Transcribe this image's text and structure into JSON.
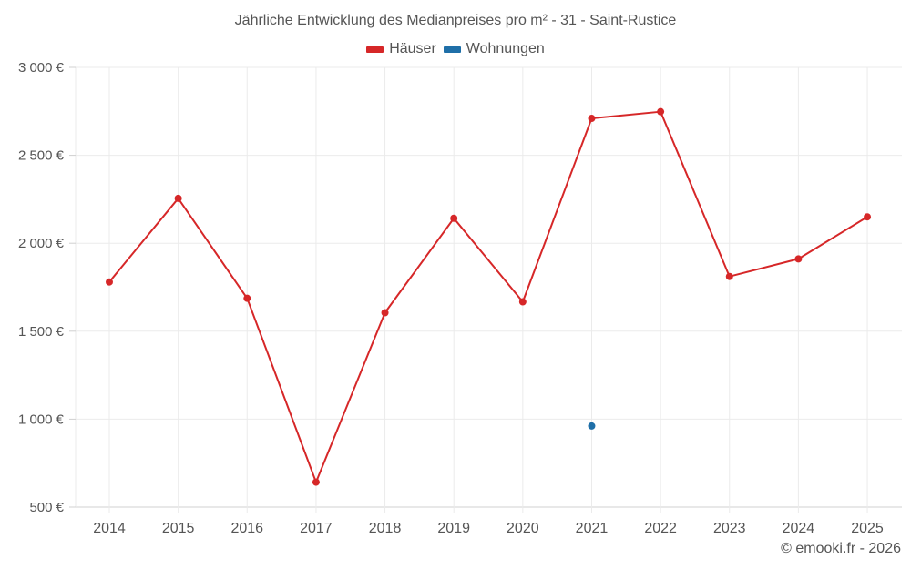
{
  "chart": {
    "title": "Jährliche Entwicklung des Medianpreises pro m² - 31 - Saint-Rustice",
    "credit": "© emooki.fr - 2026",
    "legend": [
      {
        "label": "Häuser",
        "color": "#d62728"
      },
      {
        "label": "Wohnungen",
        "color": "#1f6fa8"
      }
    ]
  },
  "chart_data": {
    "type": "line",
    "title": "Jährliche Entwicklung des Medianpreises pro m² - 31 - Saint-Rustice",
    "xlabel": "",
    "ylabel": "",
    "categories": [
      "2014",
      "2015",
      "2016",
      "2017",
      "2018",
      "2019",
      "2020",
      "2021",
      "2022",
      "2023",
      "2024",
      "2025"
    ],
    "series": [
      {
        "name": "Häuser",
        "color": "#d62728",
        "values": [
          1780,
          2255,
          1687,
          642,
          1605,
          2142,
          1667,
          2710,
          2748,
          1811,
          1911,
          2150
        ]
      },
      {
        "name": "Wohnungen",
        "color": "#1f6fa8",
        "values": [
          null,
          null,
          null,
          null,
          null,
          null,
          null,
          961,
          null,
          null,
          null,
          null
        ]
      }
    ],
    "ylim": [
      500,
      3000
    ],
    "yticks": [
      500,
      1000,
      1500,
      2000,
      2500,
      3000
    ],
    "ytick_labels": [
      "500 €",
      "1 000 €",
      "1 500 €",
      "2 000 €",
      "2 500 €",
      "3 000 €"
    ],
    "grid": true,
    "legend_position": "top"
  }
}
